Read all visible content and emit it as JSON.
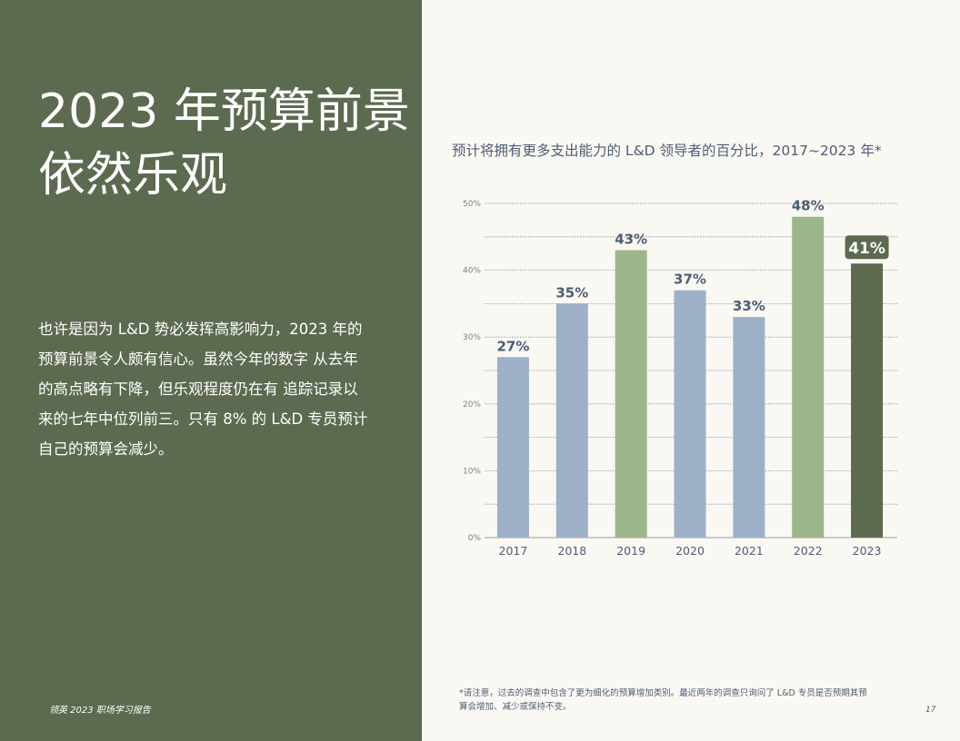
{
  "page": {
    "title_line1": "2023 年预算前景",
    "title_line2": "依然乐观",
    "body_lines": [
      "也许是因为 L&D 势必发挥高影响力，2023 年的",
      "预算前景令人颇有信心。虽然今年的数字 从去年",
      "的高点略有下降，但乐观程度仍在有 追踪记录以",
      "来的七年中位列前三。只有 8% 的 L&D 专员预计",
      "自己的预算会减少。"
    ],
    "footer_left": "领英 2023 职场学习报告",
    "footnote_line1": "*请注意，过去的调查中包含了更为细化的预算增加类别。最近两年的调查只询问了 L&D 专员是否预期其预",
    "footnote_line2": "算会增加、减少或保持不变。",
    "page_number": "17",
    "colors": {
      "left_panel": "#5c6a50",
      "bar_blue": "#9db0c8",
      "bar_green": "#9db58b",
      "bar_dark": "#5c6a50",
      "text_blue": "#4e5d74"
    }
  },
  "chart_data": {
    "type": "bar",
    "title": "预计将拥有更多支出能力的 L&D 领导者的百分比，2017~2023 年*",
    "categories": [
      "2017",
      "2018",
      "2019",
      "2020",
      "2021",
      "2022",
      "2023"
    ],
    "values": [
      27,
      35,
      43,
      37,
      33,
      48,
      41
    ],
    "data_labels": [
      "27%",
      "35%",
      "43%",
      "37%",
      "33%",
      "48%",
      "41%"
    ],
    "bar_colors": [
      "#9db0c8",
      "#9db0c8",
      "#9db58b",
      "#9db0c8",
      "#9db0c8",
      "#9db58b",
      "#5c6a50"
    ],
    "highlight_index": 6,
    "yticks": [
      0,
      10,
      20,
      30,
      40,
      50
    ],
    "ytick_labels": [
      "0%",
      "10%",
      "20%",
      "30%",
      "40%",
      "50%"
    ],
    "ylim": [
      0,
      50
    ],
    "xlabel": "",
    "ylabel": "",
    "grid": true
  }
}
